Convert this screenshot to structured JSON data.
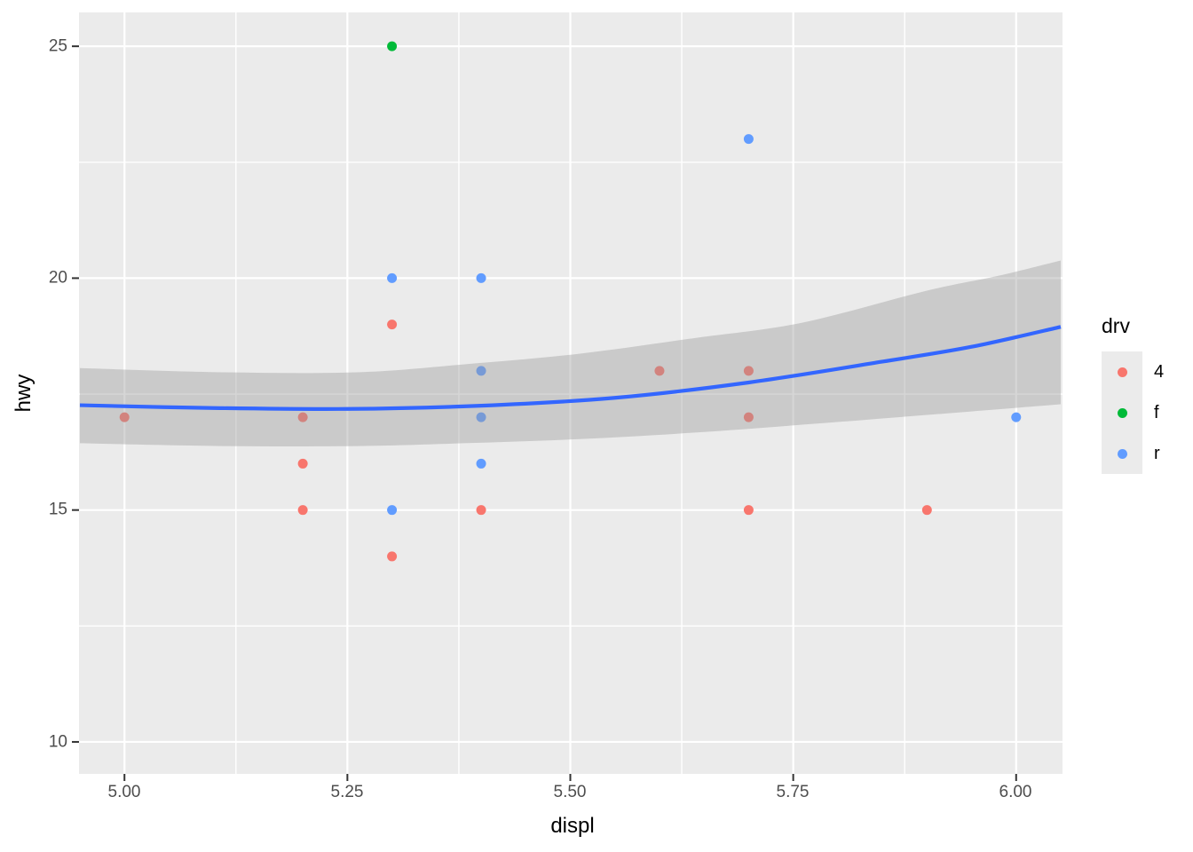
{
  "figure": {
    "background": "#FFFFFF"
  },
  "chart_data": {
    "type": "scatter",
    "title": "",
    "xlabel": "displ",
    "ylabel": "hwy",
    "xlim": [
      4.949,
      6.052
    ],
    "ylim": [
      9.31,
      25.73
    ],
    "grid": true,
    "panel_bg": "#EBEBEB",
    "grid_color": "#FFFFFF",
    "tick_mark_color": "#333333",
    "tick_label_color": "#4D4D4D",
    "x_ticks": [
      {
        "value": 5.0,
        "label": "5.00"
      },
      {
        "value": 5.25,
        "label": "5.25"
      },
      {
        "value": 5.5,
        "label": "5.50"
      },
      {
        "value": 5.75,
        "label": "5.75"
      },
      {
        "value": 6.0,
        "label": "6.00"
      }
    ],
    "y_ticks": [
      {
        "value": 25,
        "label": "25"
      },
      {
        "value": 20,
        "label": "20"
      },
      {
        "value": 15,
        "label": "15"
      },
      {
        "value": 10,
        "label": "10"
      }
    ],
    "x_minor_breaks": [
      5.125,
      5.375,
      5.625,
      5.875
    ],
    "y_minor_breaks": [
      22.5,
      17.5,
      12.5
    ],
    "series": [
      {
        "name": "4",
        "color": "#F8766D",
        "points": [
          [
            5.0,
            17
          ],
          [
            5.2,
            17
          ],
          [
            5.2,
            16
          ],
          [
            5.2,
            15
          ],
          [
            5.3,
            19
          ],
          [
            5.3,
            14
          ],
          [
            5.4,
            15
          ],
          [
            5.6,
            18
          ],
          [
            5.7,
            18
          ],
          [
            5.7,
            17
          ],
          [
            5.7,
            15
          ],
          [
            5.9,
            15
          ]
        ]
      },
      {
        "name": "f",
        "color": "#00BA38",
        "points": [
          [
            5.3,
            25
          ]
        ]
      },
      {
        "name": "r",
        "color": "#619CFF",
        "points": [
          [
            5.3,
            20
          ],
          [
            5.3,
            15
          ],
          [
            5.4,
            20
          ],
          [
            5.4,
            18
          ],
          [
            5.4,
            17
          ],
          [
            5.4,
            16
          ],
          [
            5.7,
            23
          ],
          [
            6.0,
            17
          ]
        ]
      }
    ],
    "smooth": {
      "color": "#3366FF",
      "ribbon_color": "rgba(153,153,153,0.40)",
      "line": [
        [
          4.95,
          17.26
        ],
        [
          5.1,
          17.2
        ],
        [
          5.25,
          17.18
        ],
        [
          5.4,
          17.25
        ],
        [
          5.55,
          17.42
        ],
        [
          5.7,
          17.75
        ],
        [
          5.85,
          18.2
        ],
        [
          5.95,
          18.52
        ],
        [
          6.05,
          18.95
        ]
      ],
      "ribbon_upper": [
        [
          4.95,
          18.06
        ],
        [
          5.11,
          17.97
        ],
        [
          5.26,
          17.97
        ],
        [
          5.38,
          18.14
        ],
        [
          5.51,
          18.37
        ],
        [
          5.64,
          18.71
        ],
        [
          5.76,
          19.04
        ],
        [
          5.9,
          19.73
        ],
        [
          5.98,
          20.05
        ],
        [
          6.05,
          20.38
        ]
      ],
      "ribbon_lower": [
        [
          4.95,
          16.44
        ],
        [
          5.11,
          16.38
        ],
        [
          5.26,
          16.38
        ],
        [
          5.38,
          16.44
        ],
        [
          5.51,
          16.53
        ],
        [
          5.64,
          16.67
        ],
        [
          5.76,
          16.84
        ],
        [
          5.9,
          17.05
        ],
        [
          6.05,
          17.28
        ]
      ]
    },
    "legend": {
      "title": "drv",
      "position": "right",
      "key_bg": "#EBEBEB",
      "entries": [
        {
          "label": "4",
          "color": "#F8766D"
        },
        {
          "label": "f",
          "color": "#00BA38"
        },
        {
          "label": "r",
          "color": "#619CFF"
        }
      ]
    }
  }
}
